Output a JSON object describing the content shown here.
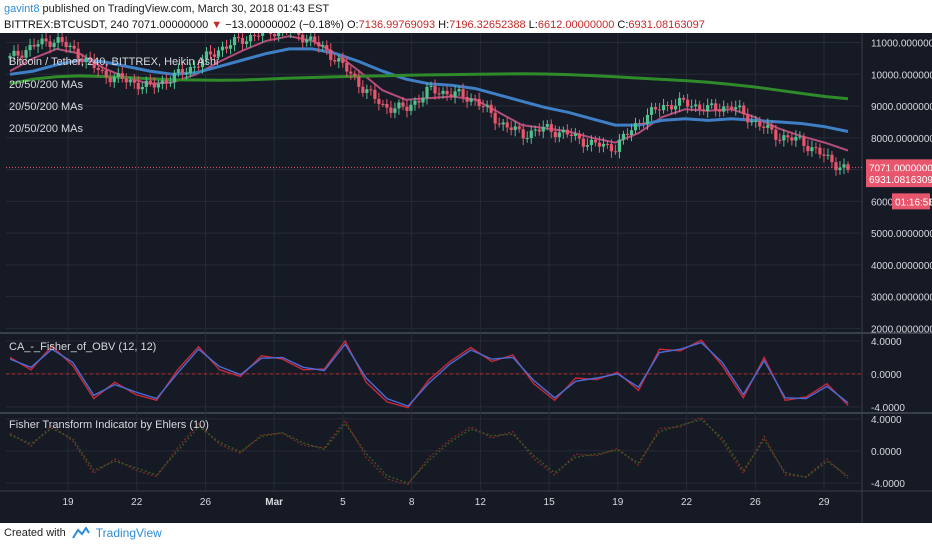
{
  "header": {
    "user": "gavint8",
    "published": "published on TradingView.com, March 30, 2018 01:43 EST",
    "symbol": "BITTREX:BTCUSDT, 240",
    "last": "7071.00000000",
    "change": "−13.00000002 (−0.18%)",
    "o_label": "O:",
    "o_value": "7136.99769093",
    "h_label": "H:",
    "h_value": "7196.32652388",
    "l_label": "L:",
    "l_value": "6612.00000000",
    "c_label": "C:",
    "c_value": "6931.08163097"
  },
  "footer": {
    "created": "Created with",
    "brand": "TradingView"
  },
  "colors": {
    "background": "#161a25",
    "grid": "#262b38",
    "up": "#4fc28f",
    "down": "#e8566d",
    "ma20": "#b24d7a",
    "ma50": "#3f7fc5",
    "ma200": "#2f8a2a",
    "fisher": "#c8293a",
    "fisher_signal": "#4a6cd6",
    "ehlers_main": "#7a2a2a",
    "ehlers_signal": "#3b5a1e",
    "label_red": "#e8566d"
  },
  "chart_data": [
    {
      "type": "line",
      "title": "Bitcoin / Tether, 240, BITTREX, Heikin Ashi",
      "legend": [
        "20/50/200 MAs",
        "20/50/200 MAs",
        "20/50/200 MAs"
      ],
      "x_ticks": [
        "19",
        "22",
        "26",
        "Mar",
        "5",
        "8",
        "12",
        "15",
        "19",
        "22",
        "26",
        "29"
      ],
      "y_ticks": [
        "11000.00000000",
        "10000.00000000",
        "9000.00000000",
        "8000.00000000",
        "7000.00000000",
        "6000.00000000",
        "5000.00000000",
        "4000.00000000",
        "3000.00000000",
        "2000.00000000"
      ],
      "ylim": [
        1950,
        11300
      ],
      "price_labels": [
        "7071.00000000",
        "6931.08163097",
        "01:16:58"
      ],
      "series": [
        {
          "role": "price",
          "values": [
            10500,
            10900,
            11100,
            10600,
            10000,
            9800,
            9600,
            9900,
            10300,
            10800,
            11100,
            11350,
            11400,
            11050,
            10500,
            9700,
            9000,
            8900,
            9500,
            9400,
            9200,
            8500,
            8100,
            8300,
            8100,
            7800,
            7700,
            8500,
            9000,
            9100,
            8900,
            9000,
            8500,
            8050,
            7900,
            7400,
            6950
          ]
        },
        {
          "role": "ma20",
          "values": [
            10100,
            10500,
            10800,
            10650,
            10200,
            9900,
            9700,
            9750,
            10000,
            10400,
            10750,
            11050,
            11200,
            11050,
            10650,
            10100,
            9500,
            9200,
            9250,
            9300,
            9200,
            8800,
            8400,
            8300,
            8200,
            8000,
            7850,
            8150,
            8650,
            8900,
            8850,
            8900,
            8650,
            8300,
            8050,
            7850,
            7600
          ]
        },
        {
          "role": "ma50",
          "values": [
            10000,
            10100,
            10300,
            10450,
            10400,
            10250,
            10100,
            10000,
            10050,
            10250,
            10450,
            10650,
            10800,
            10800,
            10650,
            10400,
            10100,
            9850,
            9700,
            9650,
            9550,
            9350,
            9150,
            8950,
            8800,
            8600,
            8400,
            8400,
            8550,
            8600,
            8550,
            8600,
            8550,
            8500,
            8450,
            8350,
            8200
          ]
        },
        {
          "role": "ma200",
          "values": [
            9700,
            9850,
            9920,
            9950,
            9930,
            9900,
            9860,
            9830,
            9820,
            9810,
            9820,
            9850,
            9880,
            9900,
            9920,
            9940,
            9950,
            9970,
            9980,
            9990,
            10000,
            10010,
            10020,
            10010,
            9990,
            9960,
            9920,
            9880,
            9840,
            9800,
            9750,
            9680,
            9600,
            9500,
            9400,
            9300,
            9230
          ]
        }
      ]
    },
    {
      "type": "line",
      "title": "CA_-_Fisher_of_OBV (12, 12)",
      "y_ticks": [
        "4.0000",
        "0.0000",
        "-4.0000"
      ],
      "ylim": [
        -4.5,
        4.6
      ],
      "series": [
        {
          "role": "fisher",
          "values": [
            2.0,
            0.5,
            3.4,
            1.0,
            -3.0,
            -1.0,
            -2.5,
            -3.2,
            0.5,
            3.3,
            0.5,
            -0.3,
            2.2,
            1.8,
            0.5,
            0.6,
            4.0,
            -1.0,
            -3.4,
            -4.1,
            -0.7,
            1.5,
            3.2,
            1.5,
            2.3,
            -1.2,
            -3.2,
            -0.5,
            -0.7,
            0.2,
            -2.0,
            3.0,
            2.8,
            4.1,
            1.0,
            -2.9,
            2.0,
            -3.2,
            -2.8,
            -1.2,
            -3.8
          ]
        },
        {
          "role": "signal",
          "values": [
            1.8,
            0.8,
            3.0,
            1.4,
            -2.6,
            -1.3,
            -2.2,
            -3.0,
            0.1,
            3.0,
            0.9,
            -0.1,
            1.9,
            2.0,
            0.8,
            0.4,
            3.6,
            -0.5,
            -3.0,
            -3.9,
            -1.1,
            1.2,
            2.9,
            1.8,
            2.0,
            -0.8,
            -2.9,
            -0.9,
            -0.5,
            0.0,
            -1.6,
            2.6,
            3.0,
            3.8,
            1.4,
            -2.5,
            1.6,
            -2.9,
            -3.0,
            -1.5,
            -3.5
          ]
        }
      ]
    },
    {
      "type": "line",
      "title": "Fisher Transform Indicator by Ehlers (10)",
      "y_ticks": [
        "4.0000",
        "0.0000",
        "-4.0000"
      ],
      "ylim": [
        -4.5,
        4.6
      ],
      "series": [
        {
          "role": "fisher",
          "values": [
            2.2,
            0.6,
            3.2,
            1.2,
            -2.8,
            -1.0,
            -2.4,
            -3.2,
            0.4,
            3.4,
            0.8,
            -0.3,
            2.0,
            2.2,
            0.7,
            0.4,
            3.8,
            -0.8,
            -3.5,
            -4.2,
            -0.8,
            1.4,
            3.0,
            1.6,
            2.4,
            -1.0,
            -3.0,
            -0.4,
            -0.6,
            0.3,
            -1.8,
            2.8,
            3.0,
            4.2,
            1.2,
            -2.8,
            1.8,
            -3.0,
            -3.2,
            -1.0,
            -3.4
          ]
        },
        {
          "role": "signal",
          "values": [
            2.0,
            0.9,
            2.8,
            1.5,
            -2.4,
            -1.3,
            -2.1,
            -3.0,
            0.0,
            3.0,
            1.1,
            -0.1,
            1.8,
            2.3,
            1.0,
            0.2,
            3.4,
            -0.3,
            -3.1,
            -4.0,
            -1.2,
            1.1,
            2.7,
            1.9,
            2.1,
            -0.6,
            -2.7,
            -0.8,
            -0.4,
            0.1,
            -1.5,
            2.4,
            3.2,
            3.9,
            1.6,
            -2.4,
            1.4,
            -2.7,
            -3.3,
            -1.3,
            -3.1
          ]
        }
      ]
    }
  ]
}
